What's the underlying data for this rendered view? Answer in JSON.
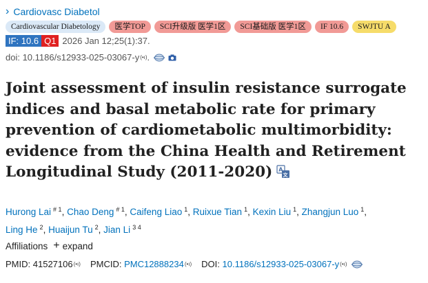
{
  "journal": {
    "name": "Cardiovasc Diabetol"
  },
  "tags": [
    {
      "label": "Cardiovascular Diabetology",
      "style": "blue"
    },
    {
      "label": "医学TOP",
      "style": "red"
    },
    {
      "label": "SCI升级版 医学1区",
      "style": "red"
    },
    {
      "label": "SCI基础版 医学1区",
      "style": "red"
    },
    {
      "label": "IF 10.6",
      "style": "red"
    },
    {
      "label": "SWJTU A",
      "style": "yellow"
    }
  ],
  "meta": {
    "if_badge": "IF: 10.6",
    "q_badge": "Q1",
    "citation": "2026 Jan 12;25(1):37."
  },
  "doi_line": {
    "text": "doi: 10.1186/s12933-025-03067-y",
    "suffix": "."
  },
  "title": "Joint assessment of insulin resistance surrogate indices and basal metabolic rate for primary prevention of cardiometabolic multimorbidity: evidence from the China Health and Retirement Longitudinal Study (2011-2020)",
  "authors": [
    {
      "name": "Hurong Lai",
      "sup": "# 1"
    },
    {
      "name": "Chao Deng",
      "sup": "# 1"
    },
    {
      "name": "Caifeng Liao",
      "sup": "1"
    },
    {
      "name": "Ruixue Tian",
      "sup": "1"
    },
    {
      "name": "Kexin Liu",
      "sup": "1"
    },
    {
      "name": "Zhangjun Luo",
      "sup": "1"
    },
    {
      "name": "Ling He",
      "sup": "2"
    },
    {
      "name": "Huaijun Tu",
      "sup": "2"
    },
    {
      "name": "Jian Li",
      "sup": "3 4"
    }
  ],
  "affiliations": {
    "label": "Affiliations",
    "expand": "expand"
  },
  "ids": {
    "pmid_label": "PMID:",
    "pmid": "41527106",
    "pmcid_label": "PMCID:",
    "pmcid": "PMC12888234",
    "doi_label": "DOI:",
    "doi": "10.1186/s12933-025-03067-y"
  },
  "icons": {
    "chevron": "chevron-right-icon",
    "wave": "audio-wave-icon",
    "globe": "globe-icon",
    "camera": "camera-icon",
    "translate": "translate-icon"
  },
  "colors": {
    "link": "#0071bc",
    "if_badge": "#2f74c0",
    "q_badge": "#e02020",
    "tag_blue": "#dbe9f7",
    "tag_red": "#f19a96",
    "tag_yellow": "#f6dc6a"
  }
}
